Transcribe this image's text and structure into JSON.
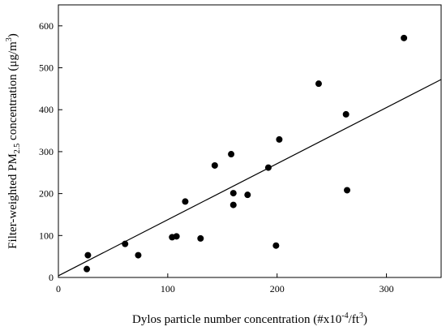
{
  "chart_data": {
    "type": "scatter",
    "xlabel_pre": "Dylos particle number concentration (#x10",
    "xlabel_exp": "-4",
    "xlabel_mid": "/ft",
    "xlabel_exp2": "3",
    "xlabel_post": ")",
    "ylabel_pre": "Filter-weighted PM",
    "ylabel_sub": "2.5",
    "ylabel_mid": " concentration (μg/m",
    "ylabel_exp": "3",
    "ylabel_post": ")",
    "xlim": [
      0,
      350
    ],
    "ylim": [
      0,
      650
    ],
    "xticks": [
      "0",
      "100",
      "200",
      "300"
    ],
    "xtick_values": [
      0,
      100,
      200,
      300
    ],
    "yticks": [
      "0",
      "100",
      "200",
      "300",
      "400",
      "500",
      "600"
    ],
    "ytick_values": [
      0,
      100,
      200,
      300,
      400,
      500,
      600
    ],
    "grid": false,
    "points": [
      {
        "x": 26,
        "y": 20
      },
      {
        "x": 27,
        "y": 53
      },
      {
        "x": 61,
        "y": 80
      },
      {
        "x": 73,
        "y": 53
      },
      {
        "x": 104,
        "y": 96
      },
      {
        "x": 108,
        "y": 98
      },
      {
        "x": 116,
        "y": 181
      },
      {
        "x": 130,
        "y": 93
      },
      {
        "x": 143,
        "y": 267
      },
      {
        "x": 158,
        "y": 294
      },
      {
        "x": 160,
        "y": 173
      },
      {
        "x": 160,
        "y": 201
      },
      {
        "x": 173,
        "y": 197
      },
      {
        "x": 192,
        "y": 262
      },
      {
        "x": 199,
        "y": 76
      },
      {
        "x": 202,
        "y": 329
      },
      {
        "x": 238,
        "y": 462
      },
      {
        "x": 263,
        "y": 389
      },
      {
        "x": 264,
        "y": 208
      },
      {
        "x": 316,
        "y": 571
      }
    ],
    "fit_line": {
      "x": [
        0,
        350
      ],
      "y": [
        4,
        472
      ]
    }
  }
}
